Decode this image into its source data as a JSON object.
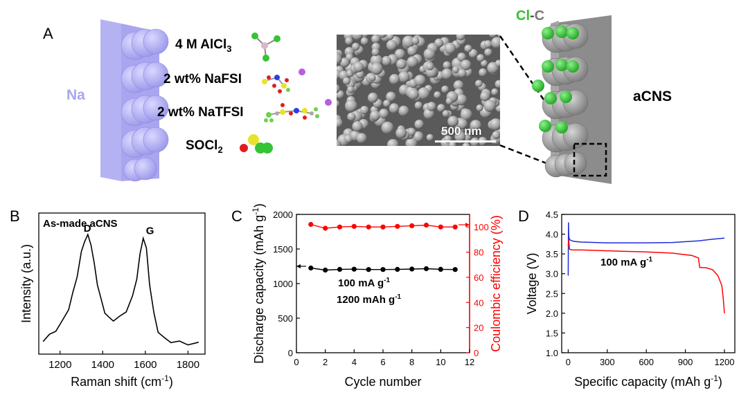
{
  "panel_a": {
    "label": "A",
    "na_label": "Na",
    "reagents": [
      {
        "text": "4 M AlCl",
        "sub": "3"
      },
      {
        "text": "2 wt% NaFSI",
        "sub": ""
      },
      {
        "text": "2 wt% NaTFSI",
        "sub": ""
      },
      {
        "text": "SOCl",
        "sub": "2"
      }
    ],
    "sem_scale": "500 nm",
    "cl_label": "Cl",
    "dash_label": "-",
    "c_label": "C",
    "acns_label": "aCNS",
    "colors": {
      "na_block": "#a9a6ef",
      "cl_sphere": "#2ec42e",
      "acns_block": "#8c8c8c"
    }
  },
  "chart_data": [
    {
      "panel": "B",
      "type": "line",
      "annotation": "As-made aCNS",
      "peaks": [
        {
          "label": "D",
          "x": 1330
        },
        {
          "label": "G",
          "x": 1590
        }
      ],
      "xlabel": "Raman shift (cm",
      "xlabel_sup": "-1",
      "xlabel_end": ")",
      "ylabel": "Intensity (a.u.)",
      "xlim": [
        1100,
        1880
      ],
      "xticks": [
        "1200",
        "1400",
        "1600",
        "1800"
      ],
      "series": [
        {
          "x": [
            1120,
            1150,
            1180,
            1210,
            1240,
            1260,
            1280,
            1300,
            1315,
            1330,
            1345,
            1360,
            1375,
            1390,
            1410,
            1430,
            1450,
            1480,
            1510,
            1540,
            1560,
            1575,
            1590,
            1605,
            1620,
            1640,
            1660,
            1690,
            1720,
            1760,
            1800,
            1850
          ],
          "y": [
            0.05,
            0.09,
            0.14,
            0.21,
            0.33,
            0.46,
            0.62,
            0.82,
            0.93,
            0.97,
            0.9,
            0.72,
            0.55,
            0.42,
            0.3,
            0.24,
            0.23,
            0.25,
            0.31,
            0.43,
            0.6,
            0.8,
            0.96,
            0.85,
            0.55,
            0.28,
            0.13,
            0.06,
            0.04,
            0.03,
            0.02,
            0.02
          ]
        }
      ]
    },
    {
      "panel": "C",
      "type": "scatter",
      "xlabel": "Cycle number",
      "ylabel": "Discharge capacity (mAh g",
      "ylabel_sup": "-1",
      "ylabel_end": ")",
      "y2label": "Coulombic efficiency (%)",
      "xlim": [
        0,
        12
      ],
      "ylim": [
        0,
        2000
      ],
      "y2lim": [
        0,
        110
      ],
      "xticks": [
        "0",
        "2",
        "4",
        "6",
        "8",
        "10",
        "12"
      ],
      "yticks": [
        "0",
        "500",
        "1000",
        "1500",
        "2000"
      ],
      "y2ticks": [
        "0",
        "20",
        "40",
        "60",
        "80",
        "100"
      ],
      "annotations": [
        {
          "text": "100 mA g",
          "sup": "-1"
        },
        {
          "text": "1200 mAh g",
          "sup": "-1"
        }
      ],
      "series": [
        {
          "axis": "left",
          "color": "#000000",
          "x": [
            1,
            2,
            3,
            4,
            5,
            6,
            7,
            8,
            9,
            10,
            11
          ],
          "values": [
            1225,
            1195,
            1205,
            1208,
            1203,
            1203,
            1205,
            1210,
            1215,
            1206,
            1203
          ]
        },
        {
          "axis": "right",
          "color": "#ff0000",
          "x": [
            1,
            2,
            3,
            4,
            5,
            6,
            7,
            8,
            9,
            10,
            11
          ],
          "values": [
            102,
            99,
            100,
            100.5,
            100,
            100,
            100.5,
            101,
            101.5,
            100,
            100
          ]
        }
      ]
    },
    {
      "panel": "D",
      "type": "line",
      "xlabel": "Specific capacity (mAh g",
      "xlabel_sup": "-1",
      "xlabel_end": ")",
      "ylabel": "Voltage (V)",
      "xlim": [
        -50,
        1280
      ],
      "ylim": [
        1.0,
        4.5
      ],
      "xticks": [
        "0",
        "300",
        "600",
        "900",
        "1200"
      ],
      "yticks": [
        "1.0",
        "1.5",
        "2.0",
        "2.5",
        "3.0",
        "3.5",
        "4.0",
        "4.5"
      ],
      "annotation": {
        "text": "100 mA g",
        "sup": "-1"
      },
      "series": [
        {
          "color": "#1f2bd6",
          "x": [
            0,
            2,
            4,
            10,
            40,
            100,
            300,
            600,
            800,
            1000,
            1100,
            1200
          ],
          "y": [
            2.95,
            4.3,
            3.95,
            3.86,
            3.82,
            3.8,
            3.78,
            3.78,
            3.79,
            3.83,
            3.87,
            3.9
          ]
        },
        {
          "color": "#ff0000",
          "x": [
            0,
            4,
            10,
            30,
            100,
            300,
            600,
            800,
            950,
            1000,
            1010,
            1060,
            1110,
            1150,
            1180,
            1190,
            1200
          ],
          "y": [
            3.7,
            3.85,
            3.62,
            3.6,
            3.6,
            3.58,
            3.55,
            3.52,
            3.46,
            3.4,
            3.16,
            3.15,
            3.1,
            2.95,
            2.7,
            2.4,
            2.0
          ]
        }
      ]
    }
  ]
}
